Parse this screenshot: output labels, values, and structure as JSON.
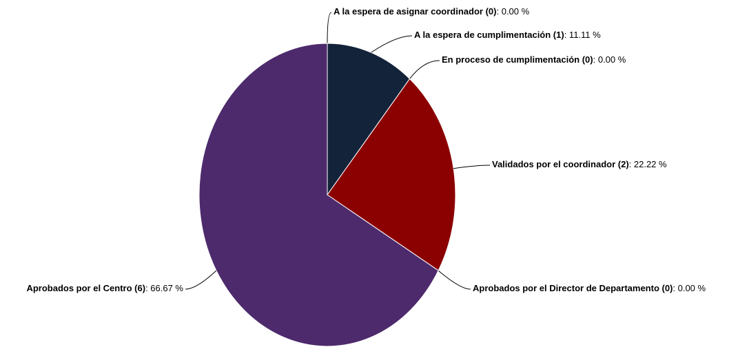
{
  "chart_data": {
    "type": "pie",
    "categories": [
      "A la espera de asignar coordinador (0)",
      "A la espera de cumplimentación (1)",
      "En proceso de cumplimentación (0)",
      "Validados por el coordinador (2)",
      "Aprobados por el Director de Departamento (0)",
      "Aprobados por el Centro (6)"
    ],
    "values": [
      0,
      11.11,
      0,
      22.22,
      0,
      66.67
    ],
    "value_labels": [
      ": 0.00 %",
      ": 11.11 %",
      ": 0.00 %",
      ": 22.22 %",
      ": 0.00 %",
      ": 66.67 %"
    ],
    "colors": [
      "#3a5a8c",
      "#13233a",
      "#b22222",
      "#8b0000",
      "#6b6b6b",
      "#4d2a6c"
    ]
  }
}
